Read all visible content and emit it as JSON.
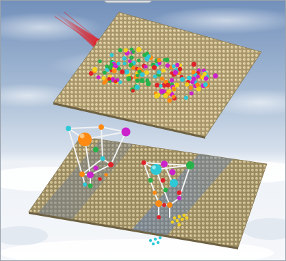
{
  "scene": {
    "colors": {
      "sky_top": "#6f8fb8",
      "sky_mid": "#b9c9dc",
      "ice": "#eef2f7",
      "surface": "#b3a277",
      "surface_dark": "#6e6243",
      "comet": "#e0222a",
      "rod": "#f4f4f4",
      "band_gray": "#7f8b99",
      "band_blue": "#6a86b2"
    },
    "atom_palette": [
      "#e0222a",
      "#26b34a",
      "#ff8a12",
      "#cc22cc",
      "#2ec9d6",
      "#f2d01e"
    ],
    "cluster_left_count": 4,
    "cluster_right_count": 3
  }
}
